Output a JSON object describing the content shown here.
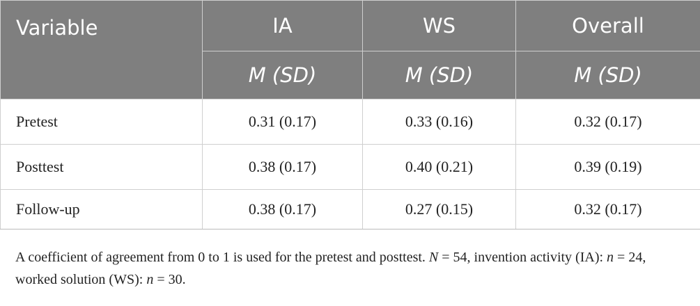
{
  "table": {
    "header": {
      "variable": "Variable",
      "columns": [
        "IA",
        "WS",
        "Overall"
      ],
      "subheader": [
        "M (SD)",
        "M (SD)",
        "M (SD)"
      ]
    },
    "rows": [
      {
        "label": "Pretest",
        "values": [
          "0.31 (0.17)",
          "0.33 (0.16)",
          "0.32 (0.17)"
        ]
      },
      {
        "label": "Posttest",
        "values": [
          "0.38 (0.17)",
          "0.40 (0.21)",
          "0.39 (0.19)"
        ]
      },
      {
        "label": "Follow-up",
        "values": [
          "0.38 (0.17)",
          "0.27 (0.15)",
          "0.32 (0.17)"
        ]
      }
    ]
  },
  "footnote": [
    "A coefficient of agreement from 0 to 1 is used for the pretest and posttest. ",
    "N",
    " = 54, invention activity (IA): ",
    "n",
    " = 24, worked solution (WS): ",
    "n",
    " = 30."
  ]
}
